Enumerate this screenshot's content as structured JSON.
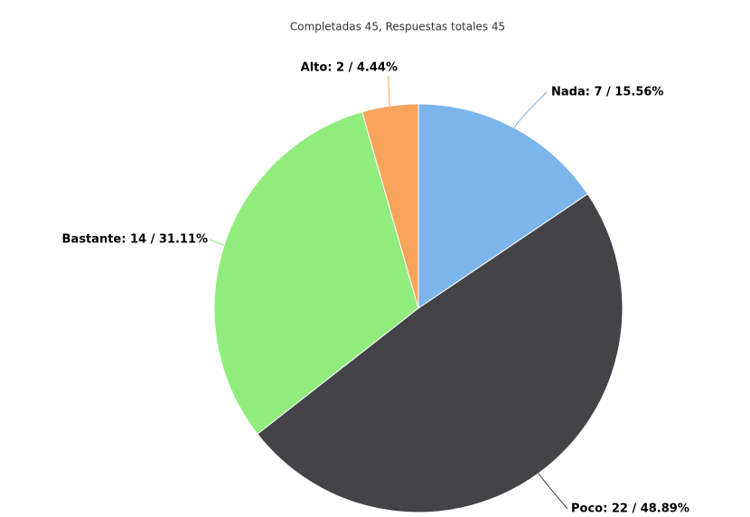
{
  "chart_data": {
    "type": "pie",
    "title": "Completadas 45, Respuestas totales 45",
    "categories": [
      "Nada",
      "Poco",
      "Bastante",
      "Alto"
    ],
    "values": [
      7,
      22,
      14,
      2
    ],
    "value_labels": [
      "Nada: 7 / 15.56%",
      "Poco: 22 / 48.89%",
      "Bastante: 14 / 31.11%",
      "Alto: 2 / 4.44%"
    ],
    "colors": [
      "#7cb5ec",
      "#434348",
      "#90ed7d",
      "#f7a35c"
    ]
  }
}
